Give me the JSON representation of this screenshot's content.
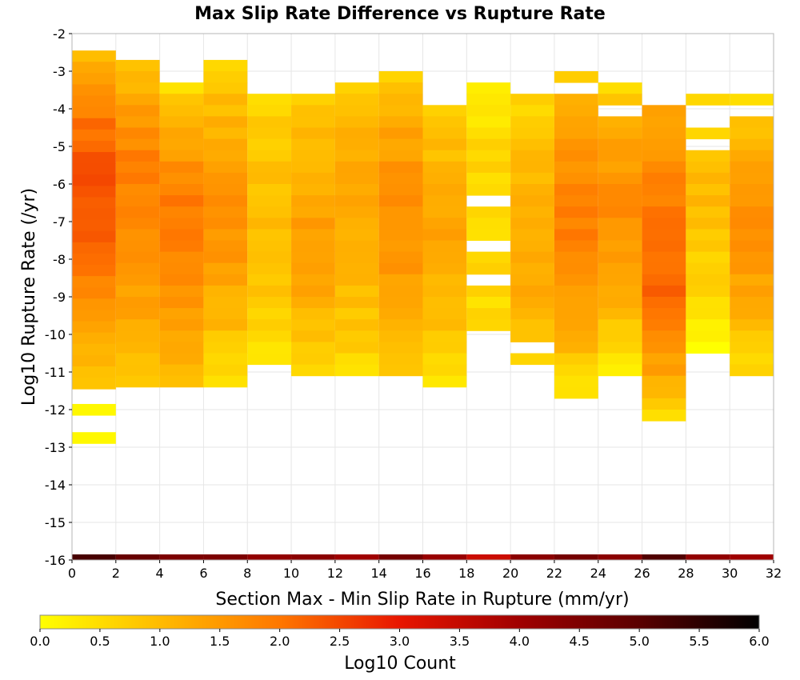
{
  "chart_data": {
    "type": "heatmap",
    "title": "Max Slip Rate Difference vs Rupture Rate",
    "xlabel": "Section Max - Min Slip Rate in Rupture (mm/yr)",
    "ylabel": "Log10 Rupture Rate (/yr)",
    "xlim": [
      0,
      32
    ],
    "ylim": [
      -16,
      -2
    ],
    "x_ticks": [
      "0",
      "2",
      "4",
      "6",
      "8",
      "10",
      "12",
      "14",
      "16",
      "18",
      "20",
      "22",
      "24",
      "26",
      "28",
      "30",
      "32"
    ],
    "y_ticks": [
      "-2",
      "-3",
      "-4",
      "-5",
      "-6",
      "-7",
      "-8",
      "-9",
      "-10",
      "-11",
      "-12",
      "-13",
      "-14",
      "-15",
      "-16"
    ],
    "x_bin_width": 2,
    "y_bin_height": 0.3,
    "grid": true,
    "colorbar": {
      "label": "Log10 Count",
      "range": [
        0,
        6
      ],
      "ticks": [
        "0.0",
        "0.5",
        "1.0",
        "1.5",
        "2.0",
        "2.5",
        "3.0",
        "3.5",
        "4.0",
        "4.5",
        "5.0",
        "5.5",
        "6.0"
      ],
      "stops": [
        {
          "v": 0.0,
          "color": "#ffff00"
        },
        {
          "v": 1.0,
          "color": "#ffbb00"
        },
        {
          "v": 2.0,
          "color": "#ff7700"
        },
        {
          "v": 3.0,
          "color": "#e81600"
        },
        {
          "v": 4.0,
          "color": "#a00000"
        },
        {
          "v": 5.0,
          "color": "#5a0000"
        },
        {
          "v": 6.0,
          "color": "#000000"
        }
      ]
    },
    "columns": [
      {
        "x": 1,
        "top": -2.45,
        "bottom": -11.5,
        "peak": -5.8,
        "peak_value": 2.4,
        "top_value": 0.8,
        "bottom_value": 0.6,
        "gaps": [],
        "extras": [
          {
            "y": -12.0,
            "value": 0.1
          },
          {
            "y": -12.75,
            "value": 0.1
          }
        ]
      },
      {
        "x": 3,
        "top": -2.7,
        "bottom": -11.55,
        "peak": -5.5,
        "peak_value": 1.9,
        "top_value": 0.4,
        "bottom_value": 0.7,
        "gaps": [],
        "extras": []
      },
      {
        "x": 5,
        "top": -3.3,
        "bottom": -11.55,
        "peak": -6.5,
        "peak_value": 1.9,
        "top_value": 0.2,
        "bottom_value": 0.8,
        "gaps": [],
        "extras": []
      },
      {
        "x": 7,
        "top": -2.7,
        "bottom": -11.55,
        "peak": -6.8,
        "peak_value": 1.6,
        "top_value": 0.3,
        "bottom_value": 0.3,
        "gaps": [],
        "extras": []
      },
      {
        "x": 9,
        "top": -3.6,
        "bottom": -10.95,
        "peak": -6.5,
        "peak_value": 1.0,
        "top_value": 0.4,
        "bottom_value": 0.4,
        "gaps": [],
        "extras": []
      },
      {
        "x": 11,
        "top": -3.6,
        "bottom": -11.25,
        "peak": -7.3,
        "peak_value": 1.4,
        "top_value": 0.5,
        "bottom_value": 0.6,
        "gaps": [],
        "extras": []
      },
      {
        "x": 13,
        "top": -3.3,
        "bottom": -11.25,
        "peak": -5.8,
        "peak_value": 1.3,
        "top_value": 0.4,
        "bottom_value": 0.5,
        "gaps": [
          [
            -10.8,
            -10.95
          ]
        ],
        "extras": []
      },
      {
        "x": 15,
        "top": -3.0,
        "bottom": -11.25,
        "peak": -6.5,
        "peak_value": 1.7,
        "top_value": 0.5,
        "bottom_value": 0.8,
        "gaps": [],
        "extras": []
      },
      {
        "x": 17,
        "top": -3.9,
        "bottom": -11.55,
        "peak": -7.5,
        "peak_value": 1.3,
        "top_value": 0.6,
        "bottom_value": 0.3,
        "gaps": [],
        "extras": []
      },
      {
        "x": 19,
        "top": -3.3,
        "bottom": -10.35,
        "peak": -5.5,
        "peak_value": 0.6,
        "top_value": 0.1,
        "bottom_value": 0.5,
        "gaps": [
          [
            -6.3,
            -6.55
          ],
          [
            -7.5,
            -7.75
          ],
          [
            -8.5,
            -8.7
          ],
          [
            -9.95,
            -10.1
          ]
        ],
        "extras": []
      },
      {
        "x": 21,
        "top": -3.6,
        "bottom": -10.95,
        "peak": -7.8,
        "peak_value": 1.3,
        "top_value": 0.4,
        "bottom_value": 0.7,
        "gaps": [
          [
            -10.15,
            -10.4
          ]
        ],
        "extras": []
      },
      {
        "x": 23,
        "top": -3.0,
        "bottom": -11.85,
        "peak": -6.8,
        "peak_value": 1.9,
        "top_value": 0.3,
        "bottom_value": 0.3,
        "gaps": [
          [
            -3.3,
            -3.6
          ]
        ],
        "extras": []
      },
      {
        "x": 25,
        "top": -3.3,
        "bottom": -11.25,
        "peak": -6.5,
        "peak_value": 1.7,
        "top_value": 0.3,
        "bottom_value": 0.2,
        "gaps": [
          [
            -3.9,
            -4.1
          ]
        ],
        "extras": []
      },
      {
        "x": 27,
        "top": -3.9,
        "bottom": -12.45,
        "peak": -8.5,
        "peak_value": 2.2,
        "top_value": 1.0,
        "bottom_value": 0.3,
        "gaps": [],
        "extras": []
      },
      {
        "x": 29,
        "top": -3.6,
        "bottom": -10.65,
        "peak": -6.0,
        "peak_value": 1.0,
        "top_value": 0.3,
        "bottom_value": 0.0,
        "gaps": [
          [
            -3.9,
            -4.5
          ],
          [
            -4.8,
            -5.0
          ]
        ],
        "extras": []
      },
      {
        "x": 31,
        "top": -3.6,
        "bottom": -11.25,
        "peak": -6.8,
        "peak_value": 1.6,
        "top_value": 0.2,
        "bottom_value": 0.4,
        "gaps": [
          [
            -3.9,
            -4.2
          ]
        ],
        "extras": []
      }
    ],
    "floor_row": {
      "y": -16,
      "values": [
        5.2,
        4.8,
        4.5,
        4.5,
        4.2,
        4.3,
        4.0,
        4.6,
        4.1,
        3.4,
        4.3,
        4.6,
        4.3,
        5.1,
        4.2,
        4.0
      ]
    }
  }
}
